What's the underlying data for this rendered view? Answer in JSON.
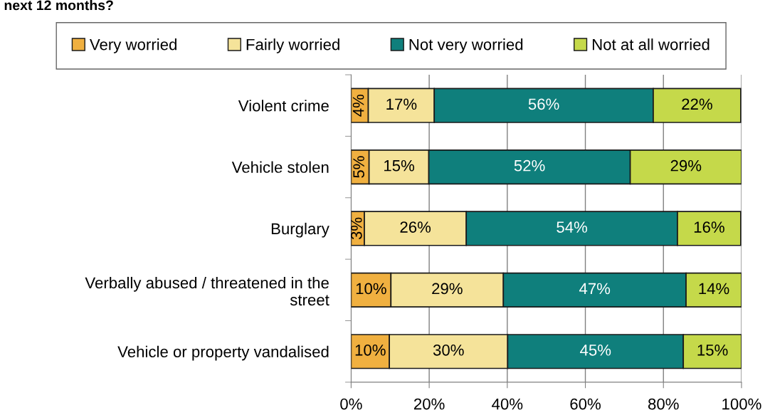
{
  "chart_data": {
    "type": "bar",
    "orientation": "horizontal",
    "stacked": true,
    "title": "next 12 months?",
    "categories": [
      "Violent crime",
      "Vehicle stolen",
      "Burglary",
      "Verbally abused / threatened in the street",
      "Vehicle or property vandalised"
    ],
    "series": [
      {
        "name": "Very worried",
        "color": "#f0b040",
        "values": [
          4.4,
          4.6,
          3.4,
          10.2,
          9.8
        ],
        "value_labels": [
          "4%",
          "5%",
          "3%",
          "10%",
          "10%"
        ]
      },
      {
        "name": "Fairly worried",
        "color": "#f5e39a",
        "values": [
          16.9,
          15.3,
          26.1,
          28.8,
          30.3
        ],
        "value_labels": [
          "17%",
          "15%",
          "26%",
          "29%",
          "30%"
        ]
      },
      {
        "name": "Not very worried",
        "color": "#0f7f7c",
        "values": [
          56.1,
          51.6,
          54.1,
          46.8,
          45.0
        ],
        "value_labels": [
          "56%",
          "52%",
          "54%",
          "47%",
          "45%"
        ]
      },
      {
        "name": "Not at all worried",
        "color": "#c5d94a",
        "values": [
          22.4,
          28.5,
          16.2,
          14.2,
          14.9
        ],
        "value_labels": [
          "22%",
          "29%",
          "16%",
          "14%",
          "15%"
        ]
      }
    ],
    "xlim": [
      0,
      100
    ],
    "xticks": [
      {
        "value": 0,
        "label": "0%"
      },
      {
        "value": 20,
        "label": "20%"
      },
      {
        "value": 40,
        "label": "40%"
      },
      {
        "value": 60,
        "label": "60%"
      },
      {
        "value": 80,
        "label": "80%"
      },
      {
        "value": 100,
        "label": "100%"
      }
    ],
    "grid": "x",
    "legend": "top"
  }
}
